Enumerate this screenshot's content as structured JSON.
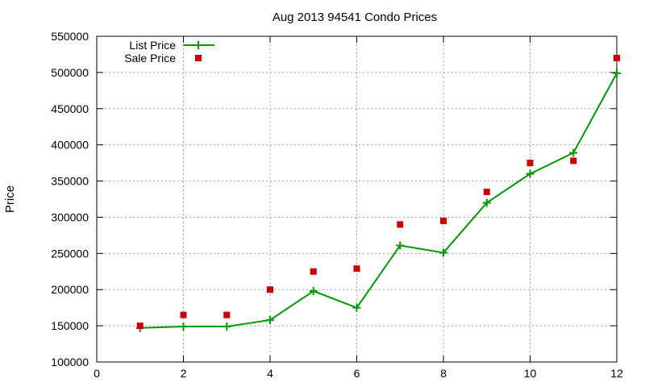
{
  "chart_data": {
    "type": "line",
    "title": "Aug 2013 94541 Condo Prices",
    "xlabel": "",
    "ylabel": "Price",
    "xlim": [
      0,
      12
    ],
    "ylim": [
      100000,
      550000
    ],
    "xticks": [
      0,
      2,
      4,
      6,
      8,
      10,
      12
    ],
    "yticks": [
      100000,
      150000,
      200000,
      250000,
      300000,
      350000,
      400000,
      450000,
      500000,
      550000
    ],
    "grid": true,
    "legend_position": "top-left",
    "series": [
      {
        "name": "List Price",
        "style": "line-plus",
        "color": "#009900",
        "x": [
          1,
          2,
          3,
          4,
          5,
          6,
          7,
          8,
          9,
          10,
          11,
          12
        ],
        "y": [
          147000,
          149000,
          149000,
          158000,
          198000,
          175000,
          261000,
          251000,
          320000,
          360000,
          389000,
          499000
        ]
      },
      {
        "name": "Sale Price",
        "style": "square-points",
        "color": "#cc0000",
        "x": [
          1,
          2,
          3,
          4,
          5,
          6,
          7,
          8,
          9,
          10,
          11,
          12
        ],
        "y": [
          150000,
          165000,
          165000,
          200000,
          225000,
          229000,
          290000,
          295000,
          335000,
          375000,
          378000,
          520000
        ]
      }
    ]
  }
}
